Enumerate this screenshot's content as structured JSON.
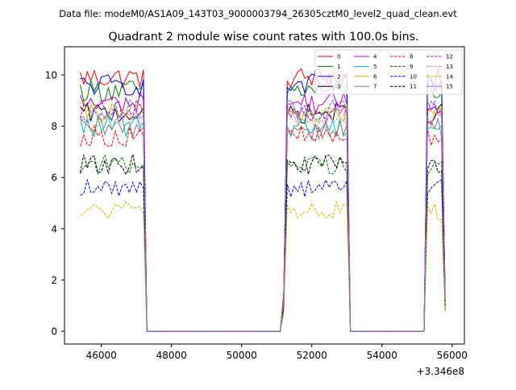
{
  "header": {
    "data_file": "Data file: modeM0/AS1A09_143T03_9000003794_26305cztM0_level2_quad_clean.evt"
  },
  "chart_data": {
    "type": "line",
    "title": "Quadrant 2 module wise count rates with 100.0s bins.",
    "xlabel": "",
    "ylabel": "",
    "x_offset_label": "+3.346e8",
    "xlim": [
      44950,
      56350
    ],
    "ylim": [
      -0.5,
      11.1
    ],
    "xticks": [
      46000,
      48000,
      50000,
      52000,
      54000,
      56000
    ],
    "yticks": [
      0,
      2,
      4,
      6,
      8,
      10
    ],
    "legend": {
      "placement": "top-right",
      "columns": 4
    },
    "segments": [
      {
        "start": 45400,
        "end": 47200
      },
      {
        "start": 51200,
        "end": 53050
      },
      {
        "start": 55250,
        "end": 55800
      }
    ],
    "gap_level": 0,
    "series": [
      {
        "name": "0",
        "color": "#ff0000",
        "style": "solid",
        "level": 9.9,
        "jitter": 0.22
      },
      {
        "name": "1",
        "color": "#008000",
        "style": "solid",
        "level": 9.4,
        "jitter": 0.22
      },
      {
        "name": "2",
        "color": "#0000ff",
        "style": "solid",
        "level": 9.6,
        "jitter": 0.22
      },
      {
        "name": "3",
        "color": "#000000",
        "style": "solid",
        "level": 8.5,
        "jitter": 0.2
      },
      {
        "name": "4",
        "color": "#c000c0",
        "style": "solid",
        "level": 8.9,
        "jitter": 0.22
      },
      {
        "name": "5",
        "color": "#00bfbf",
        "style": "solid",
        "level": 8.0,
        "jitter": 0.22
      },
      {
        "name": "6",
        "color": "#bfbf00",
        "style": "solid",
        "level": 8.5,
        "jitter": 0.22
      },
      {
        "name": "7",
        "color": "#808080",
        "style": "solid",
        "level": 7.9,
        "jitter": 0.22
      },
      {
        "name": "8",
        "color": "#ff0000",
        "style": "dashed",
        "level": 7.6,
        "jitter": 0.2
      },
      {
        "name": "9",
        "color": "#008000",
        "style": "dashed",
        "level": 6.5,
        "jitter": 0.2
      },
      {
        "name": "10",
        "color": "#0000ff",
        "style": "dashed",
        "level": 5.6,
        "jitter": 0.18
      },
      {
        "name": "11",
        "color": "#000000",
        "style": "dashed",
        "level": 6.5,
        "jitter": 0.2
      },
      {
        "name": "12",
        "color": "#c000c0",
        "style": "dashed",
        "level": 8.6,
        "jitter": 0.22
      },
      {
        "name": "13",
        "color": "#ff8080",
        "style": "dashed",
        "level": 8.3,
        "jitter": 0.22
      },
      {
        "name": "14",
        "color": "#bfbf00",
        "style": "dashed",
        "level": 4.7,
        "jitter": 0.18
      },
      {
        "name": "15",
        "color": "#6060ff",
        "style": "dashed",
        "level": 8.6,
        "jitter": 0.22
      }
    ]
  }
}
